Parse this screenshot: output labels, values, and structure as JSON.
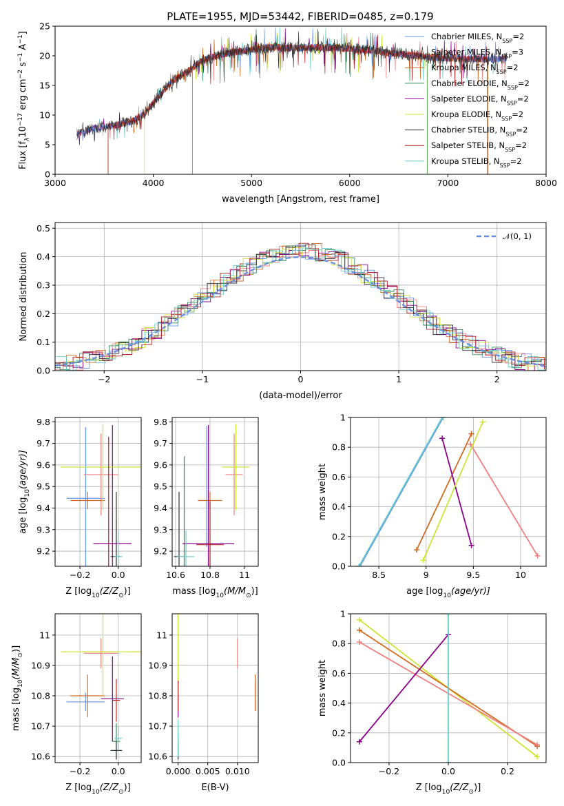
{
  "figure_title": "PLATE=1955, MJD=53442, FIBERID=0485, z=0.179",
  "colors": {
    "Chabrier MILES": "#6495ed",
    "Salpeter MILES": "#f08080",
    "Kroupa MILES": "#d2691e",
    "Chabrier ELODIE": "#2e8b57",
    "Salpeter ELODIE": "#8b008b",
    "Kroupa ELODIE": "#c8e632",
    "Chabrier STELIB": "#2f2f2f",
    "Salpeter STELIB": "#b22222",
    "Kroupa STELIB": "#66cccc",
    "gauss": "#6b8fdc"
  },
  "chart_data": [
    {
      "id": "spectrum",
      "type": "line",
      "xlabel": "wavelength [Angstrom, rest frame]",
      "ylabel_parts": [
        "Flux [f",
        "λ",
        "10",
        "−17",
        " erg cm",
        "−2",
        " s",
        "−1",
        " A",
        "−1",
        "]"
      ],
      "xlim": [
        3000,
        8000
      ],
      "ylim": [
        0,
        25
      ],
      "xticks": [
        3000,
        4000,
        5000,
        6000,
        7000,
        8000
      ],
      "yticks": [
        0,
        5,
        10,
        15,
        20,
        25
      ],
      "grid": false,
      "legend_position": "top-right",
      "legend": [
        {
          "model": "Chabrier MILES",
          "nssp": "2"
        },
        {
          "model": "Salpeter MILES",
          "nssp": "3"
        },
        {
          "model": "Kroupa MILES",
          "nssp": "2"
        },
        {
          "model": "Chabrier ELODIE",
          "nssp": "2"
        },
        {
          "model": "Salpeter ELODIE",
          "nssp": "2"
        },
        {
          "model": "Kroupa ELODIE",
          "nssp": "2"
        },
        {
          "model": "Chabrier STELIB",
          "nssp": "2"
        },
        {
          "model": "Salpeter STELIB",
          "nssp": "2"
        },
        {
          "model": "Kroupa STELIB",
          "nssp": "2"
        }
      ],
      "nssp_label": "N",
      "nssp_sub": "SSP",
      "continuum": {
        "x": [
          3220,
          3400,
          3600,
          3800,
          3900,
          4000,
          4100,
          4200,
          4300,
          4400,
          4500,
          4600,
          4700,
          4800,
          5000,
          5200,
          5400,
          5600,
          5800,
          6000,
          6200,
          6400,
          6600,
          6800,
          7000,
          7200,
          7400,
          7600
        ],
        "y": [
          6.8,
          7.8,
          8.2,
          9.0,
          10.0,
          12.0,
          14.0,
          15.8,
          16.8,
          18.0,
          19.2,
          19.8,
          20.2,
          20.6,
          21.0,
          21.5,
          21.3,
          21.4,
          21.4,
          21.2,
          20.9,
          20.5,
          20.2,
          19.8,
          19.6,
          19.5,
          19.4,
          19.6
        ]
      },
      "edges": [
        {
          "model": "Salpeter STELIB",
          "x": 3540,
          "range": [
            3540,
            7400
          ]
        },
        {
          "model": "Kroupa ELODIE",
          "x": 3910,
          "range": [
            3910,
            6790
          ]
        },
        {
          "model": "Chabrier ELODIE",
          "x": 4400,
          "range": [
            4400,
            6790
          ]
        },
        {
          "model": "Kroupa MILES",
          "x": 3540,
          "range": [
            3540,
            7410
          ]
        }
      ]
    },
    {
      "id": "residual_hist",
      "type": "histogram",
      "xlabel": "(data-model)/error",
      "ylabel": "Normed distribution",
      "xlim": [
        -2.5,
        2.5
      ],
      "ylim": [
        0,
        0.52
      ],
      "xticks": [
        -2,
        -1,
        0,
        1,
        2
      ],
      "yticks": [
        0.0,
        0.1,
        0.2,
        0.3,
        0.4,
        0.5
      ],
      "grid": true,
      "legend_position": "top-right",
      "legend": [
        {
          "name": "𝒩(0, 1)",
          "style": "dashed"
        }
      ],
      "bin_width": 0.1,
      "curve": {
        "x": [
          -2.5,
          -2.25,
          -2.0,
          -1.75,
          -1.5,
          -1.25,
          -1.0,
          -0.75,
          -0.5,
          -0.25,
          0.0,
          0.25,
          0.5,
          0.75,
          1.0,
          1.25,
          1.5,
          1.75,
          2.0,
          2.25,
          2.5
        ],
        "y": [
          0.018,
          0.032,
          0.054,
          0.086,
          0.13,
          0.183,
          0.242,
          0.301,
          0.352,
          0.387,
          0.399,
          0.387,
          0.352,
          0.301,
          0.242,
          0.183,
          0.13,
          0.086,
          0.054,
          0.032,
          0.018
        ]
      }
    },
    {
      "id": "age_vs_Z",
      "type": "errorbar",
      "xlabel": "Z [log",
      "xlabel_sub": "10",
      "xlabel_rest": "(Z/Z",
      "xlabel_end": ")]",
      "ylabel": "age  [log",
      "ylabel_sub": "10",
      "ylabel_rest": "(age/yr)]",
      "xlim": [
        -0.33,
        0.12
      ],
      "ylim": [
        9.13,
        9.82
      ],
      "xticks": [
        -0.2,
        0.0
      ],
      "xticklabels": [
        "−0.2",
        "0.0"
      ],
      "yticks": [
        9.2,
        9.3,
        9.4,
        9.5,
        9.6,
        9.7,
        9.8
      ],
      "grid": true,
      "points": [
        {
          "model": "Chabrier MILES",
          "x": -0.17,
          "xerr": 0.1,
          "y": 9.445,
          "yerr": 0.33
        },
        {
          "model": "Salpeter MILES",
          "x": -0.09,
          "xerr": 0.09,
          "y": 9.555,
          "yerr": 0.19
        },
        {
          "model": "Kroupa MILES",
          "x": -0.16,
          "xerr": 0.09,
          "y": 9.435,
          "yerr": 0.04
        },
        {
          "model": "Chabrier ELODIE",
          "x": -0.01,
          "xerr": 0.02,
          "y": 9.175,
          "yerr": 0.17
        },
        {
          "model": "Salpeter ELODIE",
          "x": -0.03,
          "xerr": 0.1,
          "y": 9.235,
          "yerr": 0.55
        },
        {
          "model": "Kroupa ELODIE",
          "x": -0.08,
          "xerr": 0.22,
          "y": 9.59,
          "yerr": 0.2
        },
        {
          "model": "Chabrier STELIB",
          "x": -0.01,
          "xerr": 0.03,
          "y": 9.175,
          "yerr": 0.3
        },
        {
          "model": "Salpeter STELIB",
          "x": -0.05,
          "xerr": 0.0,
          "y": 9.43,
          "yerr": 0.3
        },
        {
          "model": "Kroupa STELIB",
          "x": 0.0,
          "xerr": 0.02,
          "y": 9.175,
          "yerr": 0.12
        }
      ]
    },
    {
      "id": "age_vs_mass",
      "type": "errorbar",
      "xlabel": "mass [log",
      "xlabel_sub": "10",
      "xlabel_rest": "(M/M",
      "xlabel_end": ")]",
      "xlim": [
        10.58,
        11.08
      ],
      "ylim": [
        9.13,
        9.82
      ],
      "xticks": [
        10.6,
        10.8,
        11.0
      ],
      "yticks": [
        9.2,
        9.3,
        9.4,
        9.5,
        9.6,
        9.7,
        9.8
      ],
      "grid": true,
      "points": [
        {
          "model": "Chabrier MILES",
          "x": 10.78,
          "xerr": 0.0,
          "y": 9.5,
          "yerr": 0.28
        },
        {
          "model": "Salpeter MILES",
          "x": 10.94,
          "xerr": 0.05,
          "y": 9.555,
          "yerr": 0.19
        },
        {
          "model": "Kroupa MILES",
          "x": 10.8,
          "xerr": 0.07,
          "y": 9.435,
          "yerr": 0.04
        },
        {
          "model": "Chabrier ELODIE",
          "x": 10.65,
          "xerr": 0.0,
          "y": 9.3,
          "yerr": 0.34
        },
        {
          "model": "Salpeter ELODIE",
          "x": 10.79,
          "xerr": 0.15,
          "y": 9.235,
          "yerr": 0.55
        },
        {
          "model": "Kroupa ELODIE",
          "x": 10.95,
          "xerr": 0.08,
          "y": 9.59,
          "yerr": 0.2
        },
        {
          "model": "Chabrier STELIB",
          "x": 10.62,
          "xerr": 0.03,
          "y": 9.175,
          "yerr": 0.3
        },
        {
          "model": "Salpeter STELIB",
          "x": 10.8,
          "xerr": 0.08,
          "y": 9.23,
          "yerr": 0.2
        },
        {
          "model": "Kroupa STELIB",
          "x": 10.66,
          "xerr": 0.05,
          "y": 9.175,
          "yerr": 0.12
        }
      ]
    },
    {
      "id": "weight_vs_age",
      "type": "line",
      "xlabel": "age  [log",
      "xlabel_sub": "10",
      "xlabel_rest": "(age/yr)]",
      "ylabel": "mass weight",
      "xlim": [
        8.2,
        10.27
      ],
      "ylim": [
        0,
        1
      ],
      "xticks": [
        8.5,
        9.0,
        9.5,
        10.0
      ],
      "yticks": [
        0.0,
        0.2,
        0.4,
        0.6,
        0.8,
        1.0
      ],
      "grid": true,
      "series": [
        {
          "model": "Chabrier MILES",
          "x": [
            8.3,
            9.18
          ],
          "y": [
            0.0,
            1.0
          ]
        },
        {
          "model": "Kroupa STELIB",
          "x": [
            8.29,
            9.17
          ],
          "y": [
            0.0,
            1.0
          ]
        },
        {
          "model": "Salpeter MILES",
          "x": [
            9.47,
            10.18
          ],
          "y": [
            0.82,
            0.07
          ]
        },
        {
          "model": "Kroupa MILES",
          "x": [
            8.9,
            9.48
          ],
          "y": [
            0.11,
            0.89
          ]
        },
        {
          "model": "Salpeter ELODIE",
          "x": [
            9.17,
            9.48
          ],
          "y": [
            0.86,
            0.14
          ]
        },
        {
          "model": "Kroupa ELODIE",
          "x": [
            8.97,
            9.6
          ],
          "y": [
            0.04,
            0.97
          ]
        }
      ]
    },
    {
      "id": "mass_vs_Z",
      "type": "errorbar",
      "xlabel": "Z [log",
      "xlabel_sub": "10",
      "xlabel_rest": "(Z/Z",
      "xlabel_end": ")]",
      "ylabel": "mass [log",
      "ylabel_sub": "10",
      "ylabel_rest": "(M/M",
      "ylabel_end": ")]",
      "xlim": [
        -0.33,
        0.12
      ],
      "ylim": [
        10.58,
        11.07
      ],
      "xticks": [
        -0.2,
        0.0
      ],
      "xticklabels": [
        "−0.2",
        "0.0"
      ],
      "yticks": [
        10.6,
        10.7,
        10.8,
        10.9,
        11.0
      ],
      "grid": true,
      "points": [
        {
          "model": "Chabrier MILES",
          "x": -0.17,
          "xerr": 0.1,
          "y": 10.78,
          "yerr": 0.03
        },
        {
          "model": "Salpeter MILES",
          "x": -0.09,
          "xerr": 0.09,
          "y": 10.94,
          "yerr": 0.05
        },
        {
          "model": "Kroupa MILES",
          "x": -0.16,
          "xerr": 0.09,
          "y": 10.8,
          "yerr": 0.07
        },
        {
          "model": "Chabrier ELODIE",
          "x": -0.01,
          "xerr": 0.02,
          "y": 10.65,
          "yerr": 0.06
        },
        {
          "model": "Salpeter ELODIE",
          "x": -0.03,
          "xerr": 0.06,
          "y": 10.79,
          "yerr": 0.14
        },
        {
          "model": "Kroupa ELODIE",
          "x": -0.08,
          "xerr": 0.22,
          "y": 10.945,
          "yerr": 0.145
        },
        {
          "model": "Chabrier STELIB",
          "x": -0.01,
          "xerr": 0.03,
          "y": 10.62,
          "yerr": 0.03
        },
        {
          "model": "Salpeter STELIB",
          "x": -0.01,
          "xerr": 0.02,
          "y": 10.785,
          "yerr": 0.07
        },
        {
          "model": "Kroupa STELIB",
          "x": 0.0,
          "xerr": 0.02,
          "y": 10.66,
          "yerr": 0.04
        }
      ]
    },
    {
      "id": "mass_vs_ebv",
      "type": "errorbar",
      "xlabel": "E(B-V)",
      "xlim": [
        -0.001,
        0.0135
      ],
      "ylim": [
        10.58,
        11.07
      ],
      "xticks": [
        0.0,
        0.005,
        0.01
      ],
      "xticklabels": [
        "0.000",
        "0.005",
        "0.010"
      ],
      "yticks": [
        10.6,
        10.7,
        10.8,
        10.9,
        11.0
      ],
      "grid": true,
      "points": [
        {
          "model": "Chabrier MILES",
          "x": 0.013,
          "xerr": 0.0,
          "y": 10.8,
          "yerr": 0.05
        },
        {
          "model": "Salpeter MILES",
          "x": 0.01,
          "xerr": 0.0,
          "y": 10.94,
          "yerr": 0.05
        },
        {
          "model": "Kroupa MILES",
          "x": 0.013,
          "xerr": 0.0,
          "y": 10.81,
          "yerr": 0.06
        },
        {
          "model": "Chabrier ELODIE",
          "x": 0.0,
          "xerr": 0.0,
          "y": 10.64,
          "yerr": 0.04
        },
        {
          "model": "Salpeter ELODIE",
          "x": 0.0,
          "xerr": 0.0,
          "y": 10.79,
          "yerr": 0.06
        },
        {
          "model": "Kroupa ELODIE",
          "x": 0.0,
          "xerr": 0.0,
          "y": 10.94,
          "yerr": 0.14
        },
        {
          "model": "Chabrier STELIB",
          "x": 0.0,
          "xerr": 0.0,
          "y": 10.62,
          "yerr": 0.03
        },
        {
          "model": "Salpeter STELIB",
          "x": 0.0,
          "xerr": 0.0,
          "y": 10.8,
          "yerr": 0.05
        },
        {
          "model": "Kroupa STELIB",
          "x": 0.0,
          "xerr": 0.0,
          "y": 10.66,
          "yerr": 0.06
        }
      ]
    },
    {
      "id": "weight_vs_Z",
      "type": "line",
      "xlabel": "Z [log",
      "xlabel_sub": "10",
      "xlabel_rest": "(Z/Z",
      "xlabel_end": ")]",
      "ylabel": "mass weight",
      "xlim": [
        -0.33,
        0.33
      ],
      "ylim": [
        0,
        1
      ],
      "xticks": [
        -0.2,
        0.0,
        0.2
      ],
      "xticklabels": [
        "−0.2",
        "0.0",
        "0.2"
      ],
      "yticks": [
        0.0,
        0.2,
        0.4,
        0.6,
        0.8,
        1.0
      ],
      "grid": true,
      "series": [
        {
          "model": "Kroupa ELODIE",
          "x": [
            -0.3,
            0.3
          ],
          "y": [
            0.96,
            0.04
          ]
        },
        {
          "model": "Kroupa MILES",
          "x": [
            -0.3,
            0.3
          ],
          "y": [
            0.89,
            0.11
          ]
        },
        {
          "model": "Salpeter MILES",
          "x": [
            -0.3,
            0.3
          ],
          "y": [
            0.81,
            0.12
          ]
        },
        {
          "model": "Salpeter ELODIE",
          "x": [
            -0.3,
            0.0
          ],
          "y": [
            0.14,
            0.86
          ]
        },
        {
          "model": "Kroupa STELIB",
          "x": [
            0.0,
            0.0
          ],
          "y": [
            0.0,
            1.0
          ]
        }
      ]
    }
  ]
}
